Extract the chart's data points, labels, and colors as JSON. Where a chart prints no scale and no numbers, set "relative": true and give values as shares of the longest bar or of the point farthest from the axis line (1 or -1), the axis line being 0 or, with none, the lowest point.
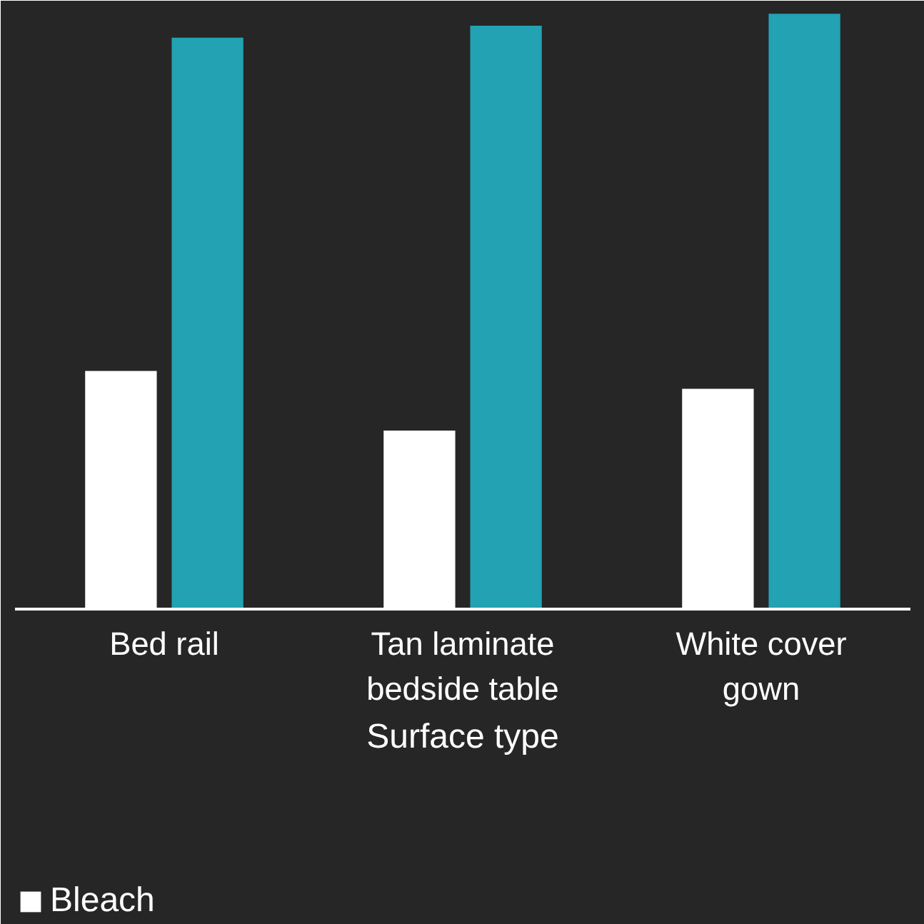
{
  "chart_data": {
    "type": "bar",
    "relative": true,
    "xlabel": "Surface type",
    "categories": [
      "Bed rail",
      "Tan laminate bedside table",
      "White cover gown"
    ],
    "series": [
      {
        "name": "Bleach",
        "color": "#ffffff",
        "values": [
          0.4,
          0.3,
          0.37
        ]
      },
      {
        "color": "#22a2b2",
        "values": [
          0.96,
          0.98,
          1.0
        ]
      }
    ],
    "legend": "bottom",
    "grid": false
  }
}
